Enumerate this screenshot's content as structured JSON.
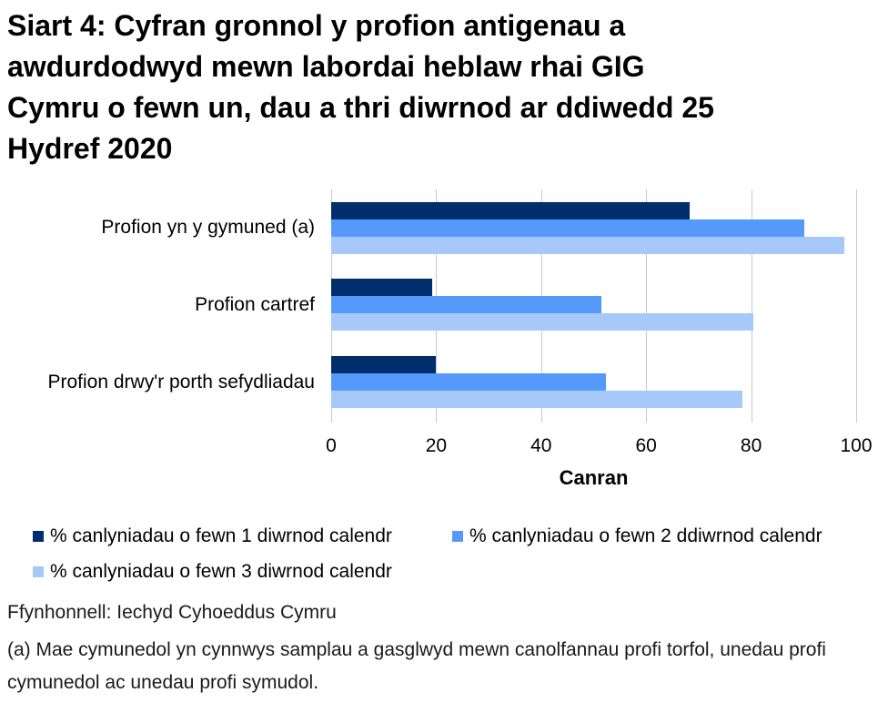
{
  "title_lines": [
    "Siart 4: Cyfran gronnol y profion antigenau a",
    "awdurdodwyd mewn labordai heblaw rhai GIG",
    "Cymru o fewn un, dau a thri diwrnod ar ddiwedd 25",
    "Hydref 2020"
  ],
  "chart_data": {
    "type": "bar",
    "orientation": "horizontal",
    "title": "Siart 4: Cyfran gronnol y profion antigenau a awdurdodwyd mewn labordai heblaw rhai GIG Cymru o fewn un, dau a thri diwrnod ar ddiwedd 25 Hydref 2020",
    "categories": [
      "Profion yn y gymuned (a)",
      "Profion cartref",
      "Profion drwy'r porth sefydliadau"
    ],
    "series": [
      {
        "name": "% canlyniadau o fewn 1 diwrnod calendr",
        "color": "#002D6B",
        "values": [
          68.3,
          19.2,
          19.9
        ]
      },
      {
        "name": "% canlyniadau o fewn 2 ddiwrnod calendr",
        "color": "#5599FA",
        "values": [
          90.1,
          51.5,
          52.3
        ]
      },
      {
        "name": "% canlyniadau o fewn 3 diwrnod calendr",
        "color": "#A6C9FA",
        "values": [
          97.8,
          80.4,
          78.4
        ]
      }
    ],
    "xlabel": "Canran",
    "ylabel": "",
    "xlim": [
      0,
      100
    ],
    "xticks": [
      0,
      20,
      40,
      60,
      80,
      100
    ],
    "grid": true,
    "gridline_color": "#c9c9c9",
    "legend_position": "bottom"
  },
  "footer": {
    "source": "Ffynhonnell: Iechyd Cyhoeddus Cymru",
    "footnote": "(a) Mae cymunedol yn cynnwys samplau a gasglwyd mewn canolfannau profi torfol, unedau profi cymunedol ac unedau profi symudol."
  }
}
